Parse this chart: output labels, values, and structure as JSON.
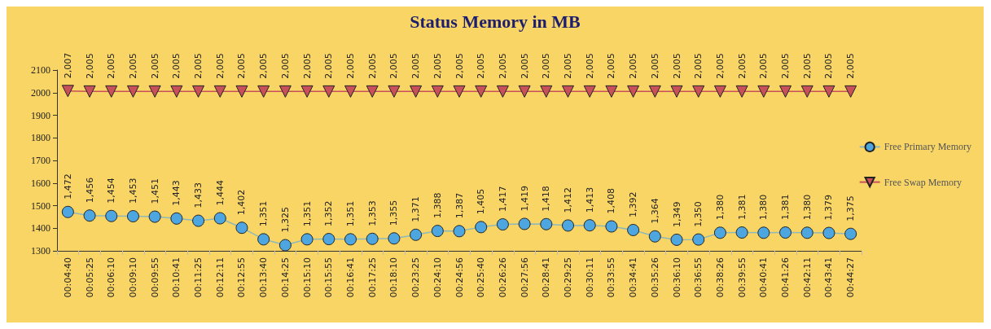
{
  "chart_data": {
    "type": "line",
    "title": "Status Memory in MB",
    "categories": [
      "00:04:40",
      "00:05:25",
      "00:06:10",
      "00:09:10",
      "00:09:55",
      "00:10:41",
      "00:11:25",
      "00:12:11",
      "00:12:55",
      "00:13:40",
      "00:14:25",
      "00:15:10",
      "00:15:55",
      "00:16:41",
      "00:17:25",
      "00:18:10",
      "00:23:25",
      "00:24:10",
      "00:24:56",
      "00:25:40",
      "00:26:26",
      "00:27:56",
      "00:28:41",
      "00:29:25",
      "00:30:11",
      "00:33:55",
      "00:34:41",
      "00:35:26",
      "00:36:10",
      "00:36:55",
      "00:38:26",
      "00:39:55",
      "00:40:41",
      "00:41:26",
      "00:42:11",
      "00:43:41",
      "00:44:27"
    ],
    "series": [
      {
        "name": "Free Primary Memory",
        "color": "#4da6e0",
        "marker": "circle",
        "values": [
          1472,
          1456,
          1454,
          1453,
          1451,
          1443,
          1433,
          1444,
          1402,
          1351,
          1325,
          1351,
          1352,
          1351,
          1353,
          1355,
          1371,
          1388,
          1387,
          1405,
          1417,
          1419,
          1418,
          1412,
          1413,
          1408,
          1392,
          1364,
          1349,
          1350,
          1380,
          1381,
          1380,
          1381,
          1380,
          1379,
          1375
        ],
        "value_labels": [
          "1,472",
          "1,456",
          "1,454",
          "1,453",
          "1,451",
          "1,443",
          "1,433",
          "1,444",
          "1,402",
          "1,351",
          "1,325",
          "1,351",
          "1,352",
          "1,351",
          "1,353",
          "1,355",
          "1,371",
          "1,388",
          "1,387",
          "1,405",
          "1,417",
          "1,419",
          "1,418",
          "1,412",
          "1,413",
          "1,408",
          "1,392",
          "1,364",
          "1,349",
          "1,350",
          "1,380",
          "1,381",
          "1,380",
          "1,381",
          "1,380",
          "1,379",
          "1,375"
        ]
      },
      {
        "name": "Free Swap Memory",
        "color": "#c8505a",
        "marker": "triangle",
        "values": [
          2007,
          2005,
          2005,
          2005,
          2005,
          2005,
          2005,
          2005,
          2005,
          2005,
          2005,
          2005,
          2005,
          2005,
          2005,
          2005,
          2005,
          2005,
          2005,
          2005,
          2005,
          2005,
          2005,
          2005,
          2005,
          2005,
          2005,
          2005,
          2005,
          2005,
          2005,
          2005,
          2005,
          2005,
          2005,
          2005,
          2005
        ],
        "value_labels": [
          "2,007",
          "2,005",
          "2,005",
          "2,005",
          "2,005",
          "2,005",
          "2,005",
          "2,005",
          "2,005",
          "2,005",
          "2,005",
          "2,005",
          "2,005",
          "2,005",
          "2,005",
          "2,005",
          "2,005",
          "2,005",
          "2,005",
          "2,005",
          "2,005",
          "2,005",
          "2,005",
          "2,005",
          "2,005",
          "2,005",
          "2,005",
          "2,005",
          "2,005",
          "2,005",
          "2,005",
          "2,005",
          "2,005",
          "2,005",
          "2,005",
          "2,005",
          "2,005"
        ]
      }
    ],
    "ylim": [
      1300,
      2100
    ],
    "yticks": [
      1300,
      1400,
      1500,
      1600,
      1700,
      1800,
      1900,
      2000,
      2100
    ],
    "grid": false,
    "legend": "right"
  }
}
